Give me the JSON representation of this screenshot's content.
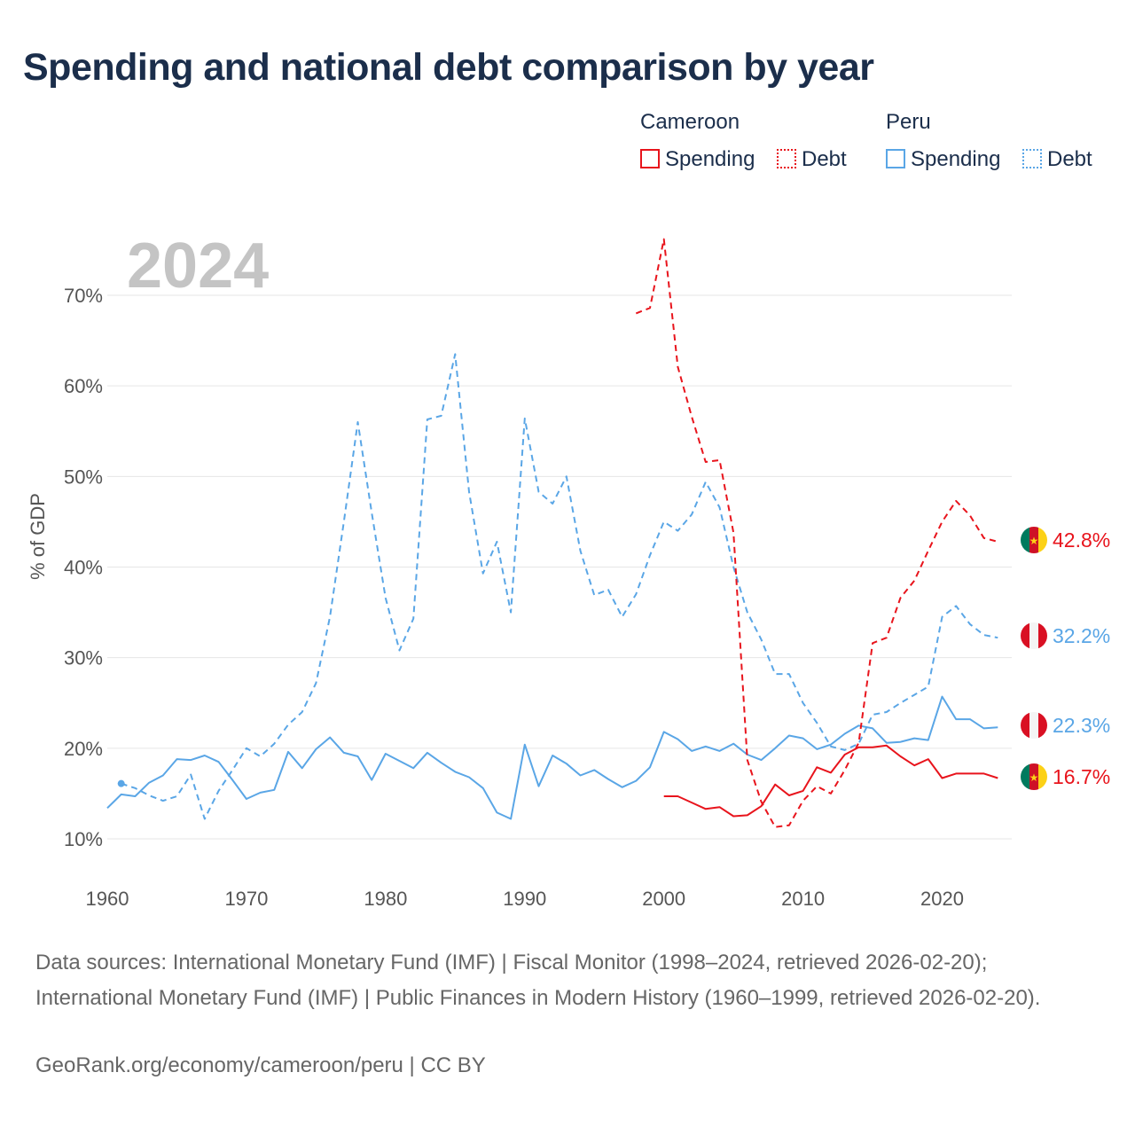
{
  "title": "Spending and national debt comparison by year",
  "legend": {
    "cameroon": {
      "name": "Cameroon",
      "spending": "Spending",
      "debt": "Debt"
    },
    "peru": {
      "name": "Peru",
      "spending": "Spending",
      "debt": "Debt"
    }
  },
  "colors": {
    "cameroon": "#e8141c",
    "peru": "#5aa6e6"
  },
  "footer": {
    "sources": "Data sources: International Monetary Fund (IMF) | Fiscal Monitor (1998–2024, retrieved 2026-02-20); International Monetary Fund (IMF) | Public Finances in Modern History (1960–1999, retrieved 2026-02-20).",
    "credit": "GeoRank.org/economy/cameroon/peru | CC BY"
  },
  "chart_data": {
    "type": "line",
    "year_label": "2024",
    "ylabel": "% of GDP",
    "xlim": [
      1960,
      2025
    ],
    "ylim": [
      10,
      70
    ],
    "x_ticks": [
      "1960",
      "1970",
      "1980",
      "1990",
      "2000",
      "2010",
      "2020"
    ],
    "y_ticks": [
      "10%",
      "20%",
      "30%",
      "40%",
      "50%",
      "60%",
      "70%"
    ],
    "end_labels": {
      "cameroon_debt": "42.8%",
      "peru_debt": "32.2%",
      "peru_spending": "22.3%",
      "cameroon_spending": "16.7%"
    },
    "series": [
      {
        "name": "Peru Spending",
        "country": "peru",
        "style": "solid",
        "x": [
          1960,
          1961,
          1962,
          1963,
          1964,
          1965,
          1966,
          1967,
          1968,
          1969,
          1970,
          1971,
          1972,
          1973,
          1974,
          1975,
          1976,
          1977,
          1978,
          1979,
          1980,
          1981,
          1982,
          1983,
          1984,
          1985,
          1986,
          1987,
          1988,
          1989,
          1990,
          1991,
          1992,
          1993,
          1994,
          1995,
          1996,
          1997,
          1998,
          1999,
          2000,
          2001,
          2002,
          2003,
          2004,
          2005,
          2006,
          2007,
          2008,
          2009,
          2010,
          2011,
          2012,
          2013,
          2014,
          2015,
          2016,
          2017,
          2018,
          2019,
          2020,
          2021,
          2022,
          2023,
          2024
        ],
        "values": [
          13.4,
          14.9,
          14.7,
          16.2,
          17.0,
          18.8,
          18.7,
          19.2,
          18.5,
          16.5,
          14.4,
          15.1,
          15.4,
          19.6,
          17.8,
          19.9,
          21.2,
          19.5,
          19.1,
          16.5,
          19.4,
          18.6,
          17.8,
          19.5,
          18.4,
          17.4,
          16.8,
          15.6,
          12.9,
          12.2,
          20.4,
          15.8,
          19.2,
          18.3,
          17.0,
          17.6,
          16.6,
          15.7,
          16.4,
          17.9,
          21.8,
          21.0,
          19.7,
          20.2,
          19.7,
          20.5,
          19.3,
          18.7,
          20.0,
          21.4,
          21.1,
          19.9,
          20.4,
          21.6,
          22.5,
          22.2,
          20.6,
          20.7,
          21.1,
          20.9,
          25.7,
          23.2,
          23.2,
          22.2,
          22.3
        ]
      },
      {
        "name": "Peru Debt",
        "country": "peru",
        "style": "dashed",
        "x": [
          1961,
          1962,
          1963,
          1964,
          1965,
          1966,
          1967,
          1968,
          1969,
          1970,
          1971,
          1972,
          1973,
          1974,
          1975,
          1976,
          1977,
          1978,
          1979,
          1980,
          1981,
          1982,
          1983,
          1984,
          1985,
          1986,
          1987,
          1988,
          1989,
          1990,
          1991,
          1992,
          1993,
          1994,
          1995,
          1996,
          1997,
          1998,
          1999,
          2000,
          2001,
          2002,
          2003,
          2004,
          2005,
          2006,
          2007,
          2008,
          2009,
          2010,
          2011,
          2012,
          2013,
          2014,
          2015,
          2016,
          2017,
          2018,
          2019,
          2020,
          2021,
          2022,
          2023,
          2024
        ],
        "values": [
          16.1,
          15.6,
          14.8,
          14.2,
          14.7,
          17.1,
          12.2,
          15.3,
          17.6,
          20.0,
          19.1,
          20.5,
          22.6,
          24.0,
          27.2,
          34.5,
          45.0,
          56.0,
          46.0,
          36.6,
          30.8,
          34.3,
          56.3,
          56.7,
          63.5,
          48.3,
          39.3,
          42.8,
          35.0,
          56.4,
          48.3,
          47.0,
          50.0,
          41.8,
          36.9,
          37.5,
          34.5,
          37.0,
          41.3,
          45.0,
          44.0,
          45.8,
          49.4,
          46.6,
          40.0,
          35.0,
          32.0,
          28.2,
          28.2,
          25.0,
          22.8,
          20.2,
          19.8,
          20.5,
          23.7,
          24.0,
          25.0,
          25.9,
          26.8,
          34.5,
          35.7,
          33.7,
          32.5,
          32.2
        ]
      },
      {
        "name": "Cameroon Spending",
        "country": "cameroon",
        "style": "solid",
        "x": [
          2000,
          2001,
          2002,
          2003,
          2004,
          2005,
          2006,
          2007,
          2008,
          2009,
          2010,
          2011,
          2012,
          2013,
          2014,
          2015,
          2016,
          2017,
          2018,
          2019,
          2020,
          2021,
          2022,
          2023,
          2024
        ],
        "values": [
          14.7,
          14.7,
          14.0,
          13.3,
          13.5,
          12.5,
          12.6,
          13.6,
          16.0,
          14.8,
          15.3,
          17.9,
          17.3,
          19.3,
          20.1,
          20.1,
          20.3,
          19.1,
          18.1,
          18.8,
          16.7,
          17.2,
          17.2,
          17.2,
          16.7
        ]
      },
      {
        "name": "Cameroon Debt",
        "country": "cameroon",
        "style": "dashed",
        "x": [
          1998,
          1999,
          2000,
          2001,
          2002,
          2003,
          2004,
          2005,
          2006,
          2007,
          2008,
          2009,
          2010,
          2011,
          2012,
          2013,
          2014,
          2015,
          2016,
          2017,
          2018,
          2019,
          2020,
          2021,
          2022,
          2023,
          2024
        ],
        "values": [
          68.0,
          68.6,
          76.2,
          62.1,
          56.6,
          51.6,
          51.8,
          43.8,
          18.7,
          14.1,
          11.3,
          11.5,
          14.2,
          15.8,
          15.0,
          17.6,
          20.6,
          31.6,
          32.2,
          36.6,
          38.5,
          41.8,
          45.0,
          47.3,
          45.7,
          43.2,
          42.8
        ]
      }
    ]
  }
}
